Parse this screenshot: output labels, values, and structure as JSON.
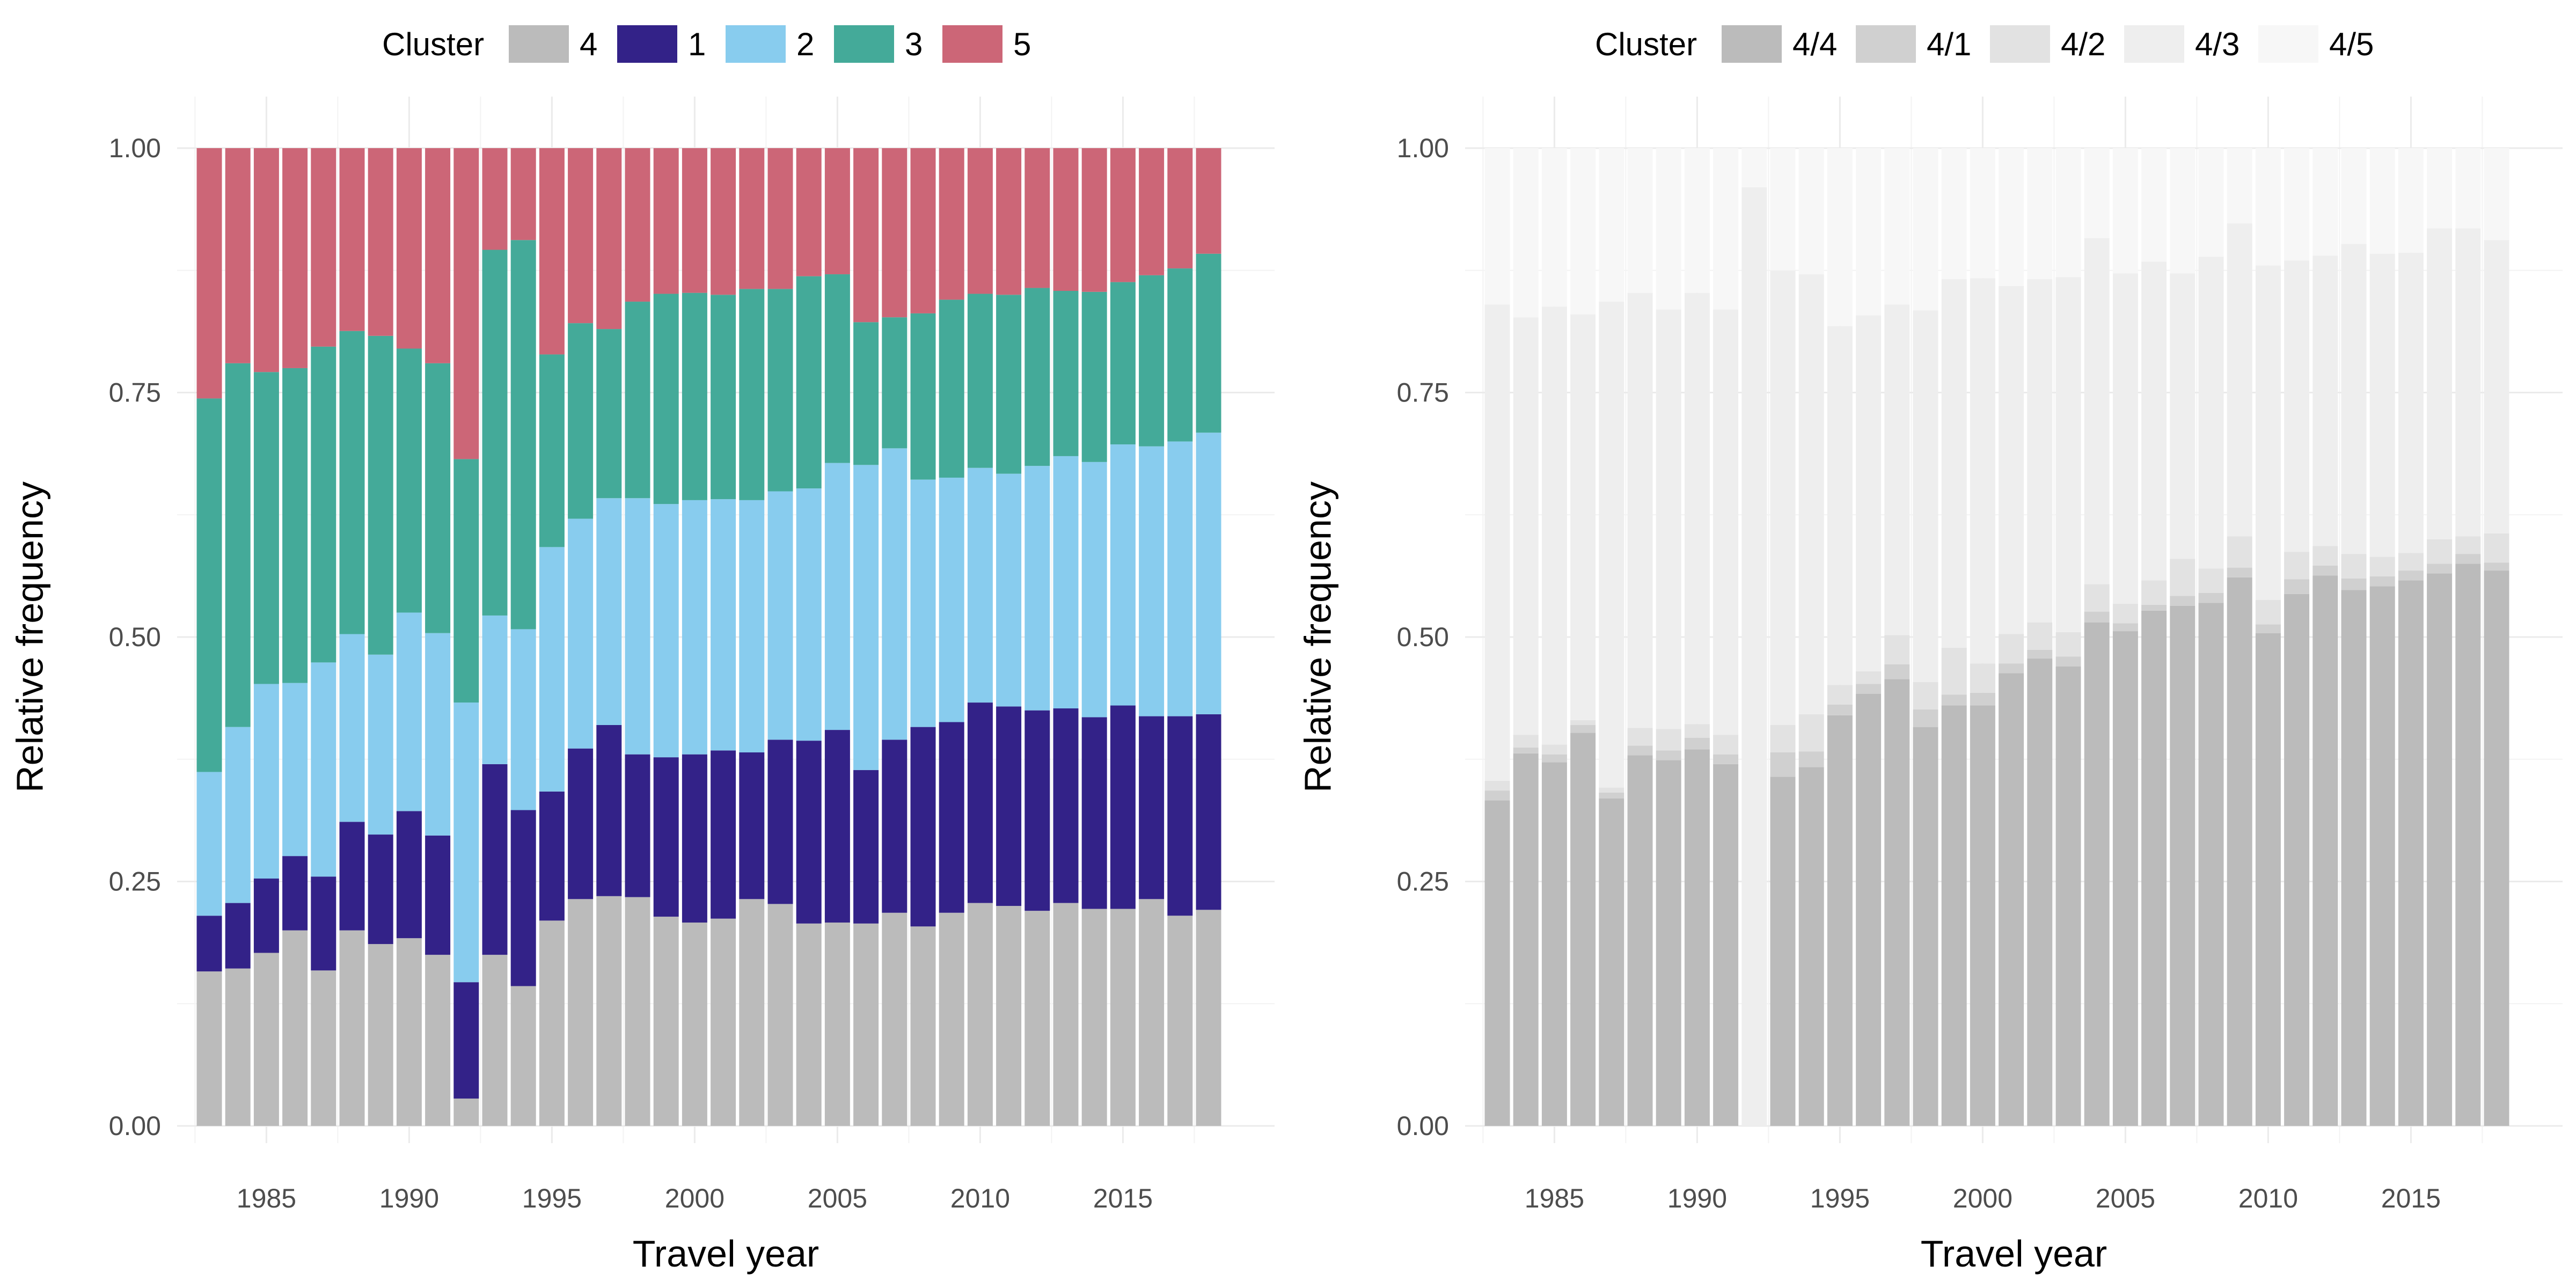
{
  "chart_data": [
    {
      "type": "bar",
      "stacked": true,
      "xlabel": "Travel year",
      "ylabel": "Relative frequency",
      "ylim": [
        0,
        1
      ],
      "y_ticks": [
        "0.00",
        "0.25",
        "0.50",
        "0.75",
        "1.00"
      ],
      "x_ticks": [
        "1985",
        "1990",
        "1995",
        "2000",
        "2005",
        "2010",
        "2015"
      ],
      "grid": true,
      "legend_position": "top",
      "legend_title": "Cluster",
      "categories": [
        1983,
        1984,
        1985,
        1986,
        1987,
        1988,
        1989,
        1990,
        1991,
        1992,
        1993,
        1994,
        1995,
        1996,
        1997,
        1998,
        1999,
        2000,
        2001,
        2002,
        2003,
        2004,
        2005,
        2006,
        2007,
        2008,
        2009,
        2010,
        2011,
        2012,
        2013,
        2014,
        2015,
        2016,
        2017,
        2018
      ],
      "series": [
        {
          "name": "4",
          "color": "#bbbbbb",
          "values": [
            0.158,
            0.161,
            0.177,
            0.2,
            0.159,
            0.2,
            0.186,
            0.192,
            0.175,
            0.028,
            0.175,
            0.143,
            0.21,
            0.232,
            0.235,
            0.234,
            0.214,
            0.208,
            0.212,
            0.232,
            0.227,
            0.207,
            0.208,
            0.207,
            0.218,
            0.204,
            0.218,
            0.228,
            0.225,
            0.22,
            0.228,
            0.222,
            0.222,
            0.232,
            0.215,
            0.221
          ]
        },
        {
          "name": "1",
          "color": "#332288",
          "values": [
            0.057,
            0.067,
            0.076,
            0.076,
            0.096,
            0.111,
            0.112,
            0.13,
            0.122,
            0.119,
            0.195,
            0.18,
            0.132,
            0.154,
            0.175,
            0.146,
            0.163,
            0.172,
            0.172,
            0.15,
            0.168,
            0.187,
            0.197,
            0.157,
            0.177,
            0.204,
            0.195,
            0.205,
            0.204,
            0.205,
            0.199,
            0.196,
            0.208,
            0.187,
            0.204,
            0.2
          ]
        },
        {
          "name": "2",
          "color": "#88ccee",
          "values": [
            0.147,
            0.18,
            0.199,
            0.177,
            0.219,
            0.192,
            0.184,
            0.203,
            0.207,
            0.286,
            0.152,
            0.185,
            0.25,
            0.235,
            0.232,
            0.262,
            0.259,
            0.26,
            0.257,
            0.258,
            0.254,
            0.258,
            0.273,
            0.312,
            0.298,
            0.253,
            0.25,
            0.24,
            0.238,
            0.25,
            0.258,
            0.261,
            0.267,
            0.276,
            0.281,
            0.288
          ]
        },
        {
          "name": "3",
          "color": "#44aa99",
          "values": [
            0.382,
            0.372,
            0.319,
            0.322,
            0.323,
            0.31,
            0.326,
            0.27,
            0.276,
            0.249,
            0.374,
            0.398,
            0.197,
            0.2,
            0.173,
            0.201,
            0.215,
            0.212,
            0.209,
            0.216,
            0.207,
            0.217,
            0.193,
            0.146,
            0.134,
            0.17,
            0.182,
            0.178,
            0.183,
            0.182,
            0.169,
            0.174,
            0.166,
            0.175,
            0.177,
            0.183
          ]
        },
        {
          "name": "5",
          "color": "#cc6677",
          "values": [
            0.256,
            0.22,
            0.229,
            0.225,
            0.203,
            0.187,
            0.192,
            0.205,
            0.22,
            0.318,
            0.104,
            0.094,
            0.211,
            0.179,
            0.185,
            0.157,
            0.149,
            0.148,
            0.15,
            0.144,
            0.144,
            0.131,
            0.129,
            0.178,
            0.173,
            0.169,
            0.155,
            0.149,
            0.15,
            0.143,
            0.146,
            0.147,
            0.137,
            0.13,
            0.123,
            0.108
          ]
        }
      ]
    },
    {
      "type": "bar",
      "stacked": true,
      "xlabel": "Travel year",
      "ylabel": "Relative frequency",
      "ylim": [
        0,
        1
      ],
      "y_ticks": [
        "0.00",
        "0.25",
        "0.50",
        "0.75",
        "1.00"
      ],
      "x_ticks": [
        "1985",
        "1990",
        "1995",
        "2000",
        "2005",
        "2010",
        "2015"
      ],
      "grid": true,
      "legend_position": "top",
      "legend_title": "Cluster",
      "categories": [
        1983,
        1984,
        1985,
        1986,
        1987,
        1988,
        1989,
        1990,
        1991,
        1992,
        1993,
        1994,
        1995,
        1996,
        1997,
        1998,
        1999,
        2000,
        2001,
        2002,
        2003,
        2004,
        2005,
        2006,
        2007,
        2008,
        2009,
        2010,
        2011,
        2012,
        2013,
        2014,
        2015,
        2016,
        2017,
        2018
      ],
      "series": [
        {
          "name": "4/4",
          "color": "#bbbbbb",
          "values": [
            0.333,
            0.381,
            0.372,
            0.402,
            0.335,
            0.379,
            0.374,
            0.385,
            0.37,
            0.0,
            0.357,
            0.367,
            0.42,
            0.442,
            0.457,
            0.408,
            0.43,
            0.43,
            0.463,
            0.478,
            0.47,
            0.515,
            0.506,
            0.527,
            0.532,
            0.535,
            0.561,
            0.504,
            0.544,
            0.563,
            0.548,
            0.552,
            0.558,
            0.565,
            0.575,
            0.568
          ]
        },
        {
          "name": "4/1",
          "color": "#d0d0d0",
          "values": [
            0.01,
            0.006,
            0.008,
            0.008,
            0.006,
            0.01,
            0.01,
            0.012,
            0.01,
            0.0,
            0.025,
            0.016,
            0.011,
            0.01,
            0.015,
            0.018,
            0.011,
            0.013,
            0.01,
            0.009,
            0.01,
            0.011,
            0.008,
            0.006,
            0.01,
            0.01,
            0.01,
            0.009,
            0.015,
            0.01,
            0.012,
            0.01,
            0.01,
            0.01,
            0.01,
            0.008
          ]
        },
        {
          "name": "4/2",
          "color": "#e2e2e2",
          "values": [
            0.01,
            0.013,
            0.01,
            0.005,
            0.005,
            0.018,
            0.022,
            0.014,
            0.02,
            0.0,
            0.028,
            0.038,
            0.02,
            0.013,
            0.03,
            0.028,
            0.048,
            0.03,
            0.03,
            0.028,
            0.025,
            0.028,
            0.02,
            0.025,
            0.038,
            0.025,
            0.032,
            0.025,
            0.028,
            0.02,
            0.025,
            0.02,
            0.018,
            0.025,
            0.018,
            0.03
          ]
        },
        {
          "name": "4/3",
          "color": "#eeeeee",
          "values": [
            0.487,
            0.427,
            0.448,
            0.415,
            0.497,
            0.445,
            0.429,
            0.441,
            0.435,
            0.96,
            0.465,
            0.45,
            0.367,
            0.364,
            0.338,
            0.38,
            0.377,
            0.394,
            0.356,
            0.351,
            0.363,
            0.354,
            0.338,
            0.326,
            0.292,
            0.319,
            0.32,
            0.342,
            0.298,
            0.297,
            0.317,
            0.31,
            0.307,
            0.318,
            0.315,
            0.3
          ]
        },
        {
          "name": "4/5",
          "color": "#f7f7f7",
          "values": [
            0.16,
            0.173,
            0.162,
            0.17,
            0.157,
            0.148,
            0.165,
            0.148,
            0.165,
            0.04,
            0.125,
            0.129,
            0.182,
            0.171,
            0.16,
            0.166,
            0.134,
            0.133,
            0.141,
            0.134,
            0.132,
            0.092,
            0.128,
            0.116,
            0.128,
            0.111,
            0.077,
            0.12,
            0.115,
            0.11,
            0.098,
            0.108,
            0.107,
            0.082,
            0.082,
            0.094
          ]
        }
      ]
    }
  ]
}
